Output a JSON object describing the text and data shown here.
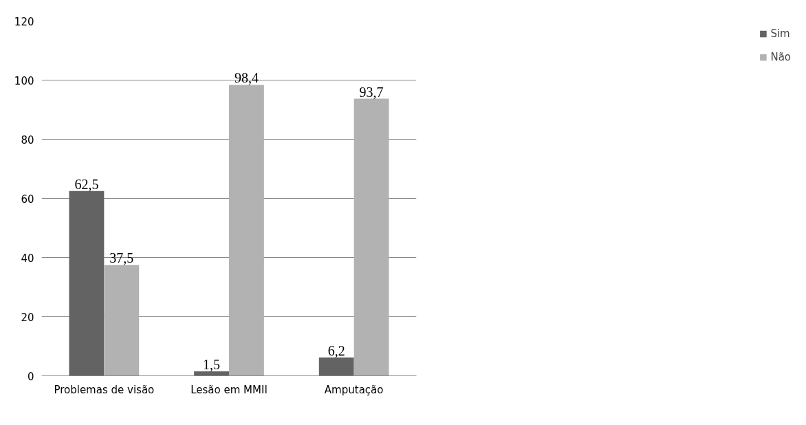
{
  "chart_data": {
    "type": "bar",
    "categories": [
      "Problemas de visão",
      "Lesão em MMII",
      "Amputação"
    ],
    "series": [
      {
        "name": "Sim",
        "color": "#636363",
        "values": [
          62.5,
          1.5,
          6.2
        ],
        "value_labels": [
          "62,5",
          "1,5",
          "6,2"
        ]
      },
      {
        "name": "Não",
        "color": "#b2b2b2",
        "values": [
          37.5,
          98.4,
          93.7
        ],
        "value_labels": [
          "37,5",
          "98,4",
          "93,7"
        ]
      }
    ],
    "ylim": [
      0,
      120
    ],
    "yticks": [
      0,
      20,
      40,
      60,
      80,
      100,
      120
    ],
    "grid": "y",
    "legend": "right"
  }
}
